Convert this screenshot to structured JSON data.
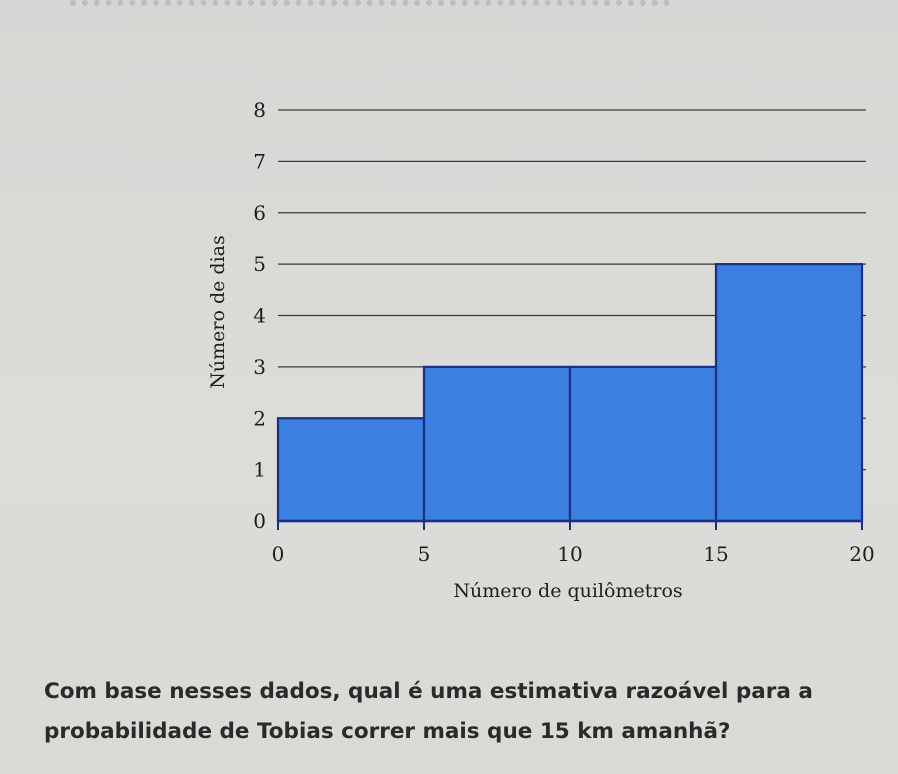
{
  "chart_data": {
    "type": "bar",
    "subtype": "histogram",
    "bins": [
      {
        "x0": 0,
        "x1": 5,
        "value": 2
      },
      {
        "x0": 5,
        "x1": 10,
        "value": 3
      },
      {
        "x0": 10,
        "x1": 15,
        "value": 3
      },
      {
        "x0": 15,
        "x1": 20,
        "value": 5
      }
    ],
    "x_ticks": [
      "0",
      "5",
      "10",
      "15",
      "20"
    ],
    "y_ticks": [
      "0",
      "1",
      "2",
      "3",
      "4",
      "5",
      "6",
      "7",
      "8"
    ],
    "xlabel": "Número de quilômetros",
    "ylabel": "Número de dias",
    "xlim": [
      0,
      20
    ],
    "ylim": [
      0,
      8
    ],
    "grid": "horizontal",
    "colors": {
      "bar_fill": "#3b7fe0",
      "bar_stroke": "#1b2f8a",
      "grid": "#3a3a3a"
    }
  },
  "question": {
    "line1": "Com base nesses dados, qual é uma estimativa razoável para a",
    "line2": "probabilidade de Tobias correr mais que 15 km amanhã?"
  }
}
